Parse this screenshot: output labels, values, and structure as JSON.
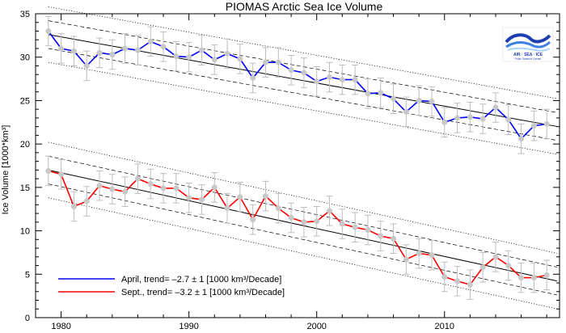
{
  "chart_data": {
    "type": "line",
    "title": "PIOMAS Arctic Sea Ice Volume",
    "xlabel": "",
    "ylabel": "Ice Volume [1000*km³]",
    "xlim": [
      1978,
      2019
    ],
    "ylim": [
      0,
      35
    ],
    "x_ticks": [
      1980,
      1990,
      2000,
      2010
    ],
    "y_ticks": [
      0,
      5,
      10,
      15,
      20,
      25,
      30,
      35
    ],
    "grid": false,
    "legend_position": "bottom-left",
    "x": [
      1979,
      1980,
      1981,
      1982,
      1983,
      1984,
      1985,
      1986,
      1987,
      1988,
      1989,
      1990,
      1991,
      1992,
      1993,
      1994,
      1995,
      1996,
      1997,
      1998,
      1999,
      2000,
      2001,
      2002,
      2003,
      2004,
      2005,
      2006,
      2007,
      2008,
      2009,
      2010,
      2011,
      2012,
      2013,
      2014,
      2015,
      2016,
      2017,
      2018
    ],
    "series": [
      {
        "name": "April, trend= –2.7 ± 1 [1000 km³/Decade]",
        "color": "#0000ff",
        "values": [
          33.0,
          31.0,
          30.7,
          29.0,
          30.5,
          30.3,
          31.0,
          30.8,
          31.8,
          31.2,
          30.1,
          30.0,
          30.8,
          29.7,
          30.4,
          29.8,
          27.6,
          29.4,
          29.4,
          28.5,
          28.2,
          27.2,
          27.7,
          27.4,
          27.4,
          25.8,
          25.9,
          25.2,
          23.7,
          25.0,
          24.9,
          22.5,
          23.0,
          23.1,
          22.9,
          24.2,
          22.8,
          20.6,
          22.1,
          22.3
        ],
        "trend_line": [
          32.6,
          22.1
        ]
      },
      {
        "name": "Sept., trend= –3.2 ± 1 [1000 km³/Decade]",
        "color": "#ff0000",
        "values": [
          16.9,
          16.5,
          12.8,
          13.4,
          15.2,
          14.8,
          14.5,
          16.0,
          15.4,
          14.9,
          14.9,
          13.8,
          13.6,
          15.0,
          12.6,
          13.9,
          11.3,
          14.0,
          12.6,
          11.5,
          11.0,
          11.1,
          12.3,
          10.8,
          10.4,
          10.1,
          9.4,
          9.1,
          6.7,
          7.4,
          7.2,
          4.7,
          4.2,
          3.8,
          5.8,
          7.0,
          6.0,
          4.6,
          4.6,
          4.9
        ],
        "trend_line": [
          17.0,
          4.3
        ]
      }
    ],
    "error_bar_halfwidth": 1.7,
    "trend_bands": [
      {
        "style": "dashed",
        "offset": 1.6
      },
      {
        "style": "dotted",
        "offset": 3.2
      }
    ],
    "marker_color": "#c8c8c8",
    "error_bar_color": "#bdbdbd"
  },
  "logo": {
    "text": "AIR · SEA · ICE",
    "subtext": "Polar Science Center",
    "colors": [
      "#1d3fb0",
      "#3f7fe0",
      "#a9d4ff"
    ]
  }
}
